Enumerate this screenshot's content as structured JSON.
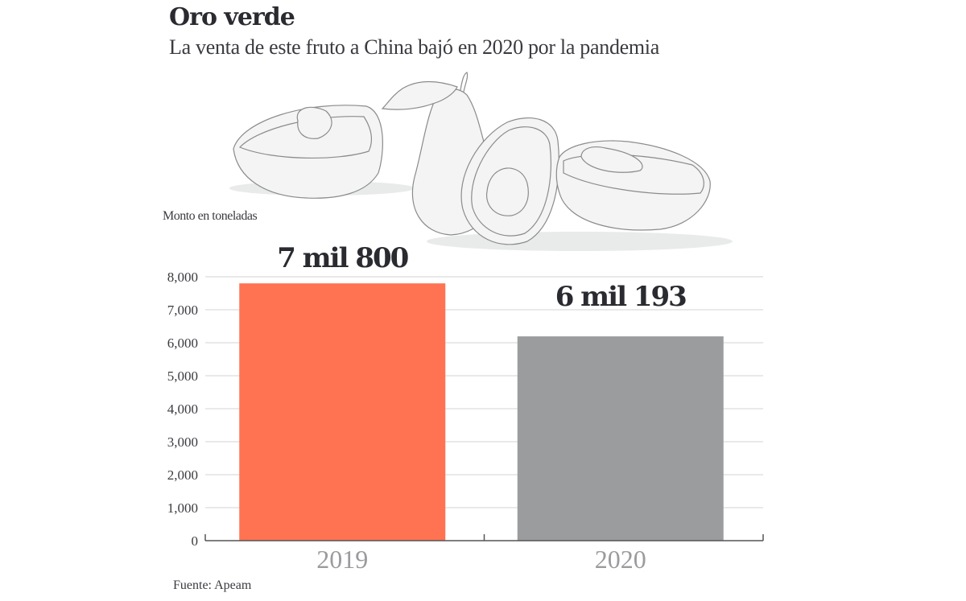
{
  "header": {
    "title": "Oro verde",
    "subtitle": "La venta de este fruto a China bajó en 2020 por la pandemia"
  },
  "illustration": {
    "icon": "avocados-illustration"
  },
  "footer": {
    "source": "Fuente: Apeam"
  },
  "colors": {
    "bar_2019": "#ff7352",
    "bar_2020": "#9b9c9e",
    "gridline": "#dcdcdc",
    "axis": "#555555",
    "category_text": "#9a9b9e",
    "label_text": "#2a2b30"
  },
  "chart_data": {
    "type": "bar",
    "title": "Oro verde",
    "subtitle": "La venta de este fruto a China bajó en 2020 por la pandemia",
    "xlabel": "",
    "ylabel": "Monto en toneladas",
    "categories": [
      "2019",
      "2020"
    ],
    "values": [
      7800,
      6193
    ],
    "data_labels": [
      "7 mil 800",
      "6 mil 193"
    ],
    "ylim": [
      0,
      8000
    ],
    "yticks": [
      0,
      1000,
      2000,
      3000,
      4000,
      5000,
      6000,
      7000,
      8000
    ],
    "ytick_labels": [
      "0",
      "1,000",
      "2,000",
      "3,000",
      "4,000",
      "5,000",
      "6,000",
      "7,000",
      "8,000"
    ],
    "grid": true,
    "legend": "none",
    "source": "Fuente: Apeam"
  }
}
